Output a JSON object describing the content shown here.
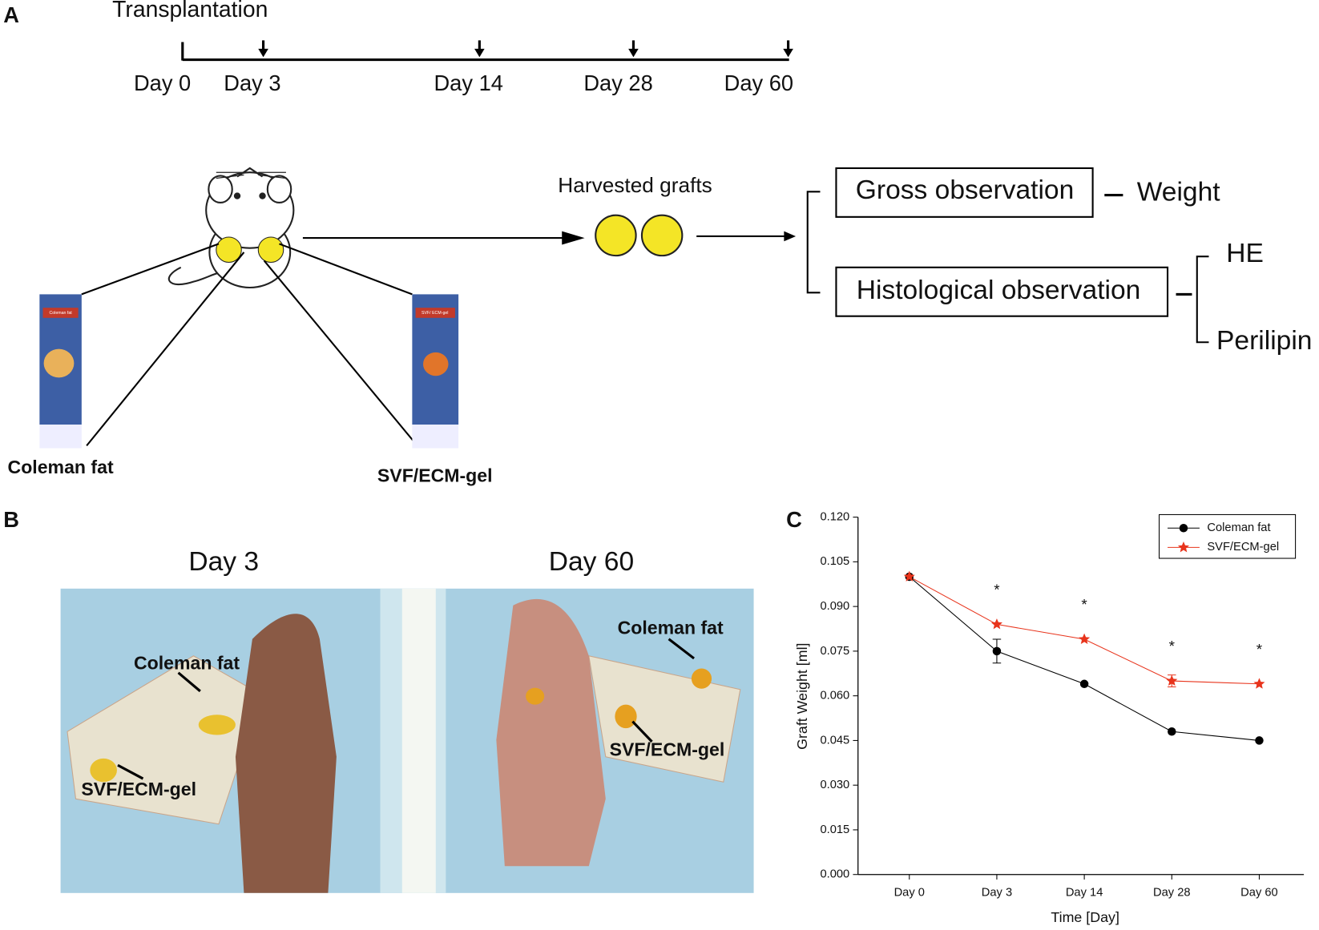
{
  "panel_a": {
    "label": "A",
    "timeline": {
      "title": "Transplantation",
      "days": [
        "Day 0",
        "Day 3",
        "Day 14",
        "Day 28",
        "Day 60"
      ]
    },
    "cards": [
      "Coleman fat",
      "SVF/ ECM-gel"
    ],
    "grafts": [
      "Coleman fat",
      "SVF/ECM-gel"
    ],
    "harvested": "Harvested grafts",
    "outcomes": {
      "gross": "Gross observation",
      "gross_measure": "Weight",
      "histo": "Histological observation",
      "stains": [
        "HE",
        "Perilipin"
      ]
    }
  },
  "panel_b": {
    "label": "B",
    "photos": [
      {
        "title": "Day 3",
        "labels": [
          "Coleman fat",
          "SVF/ECM-gel"
        ]
      },
      {
        "title": "Day 60",
        "labels": [
          "Coleman fat",
          "SVF/ECM-gel"
        ]
      }
    ]
  },
  "chart_data": {
    "type": "line",
    "panel_label": "C",
    "x_label": "Time [Day]",
    "y_label": "Graft Weight [ml]",
    "categories": [
      "Day 0",
      "Day 3",
      "Day 14",
      "Day 28",
      "Day 60"
    ],
    "series": [
      {
        "name": "Coleman fat",
        "color": "#000000",
        "marker": "circle",
        "values": [
          0.1,
          0.075,
          0.064,
          0.048,
          0.045
        ],
        "errors": [
          null,
          0.004,
          null,
          null,
          null
        ]
      },
      {
        "name": "SVF/ECM-gel",
        "color": "#e8341c",
        "marker": "star",
        "values": [
          0.1,
          0.084,
          0.079,
          0.065,
          0.064
        ],
        "errors": [
          null,
          null,
          null,
          0.002,
          null
        ]
      }
    ],
    "annotations": [
      "*",
      "*",
      "*",
      "*"
    ],
    "ylim": [
      0,
      0.12
    ],
    "yticks": [
      {
        "value": 0,
        "label": "0.000"
      },
      {
        "value": 0.015,
        "label": "0.015"
      },
      {
        "value": 0.03,
        "label": "0.030"
      },
      {
        "value": 0.045,
        "label": "0.045"
      },
      {
        "value": 0.06,
        "label": "0.060"
      },
      {
        "value": 0.075,
        "label": "0.075"
      },
      {
        "value": 0.09,
        "label": "0.090"
      },
      {
        "value": 0.105,
        "label": "0.105"
      },
      {
        "value": 0.12,
        "label": "0.120"
      }
    ],
    "legend": "upper right"
  }
}
